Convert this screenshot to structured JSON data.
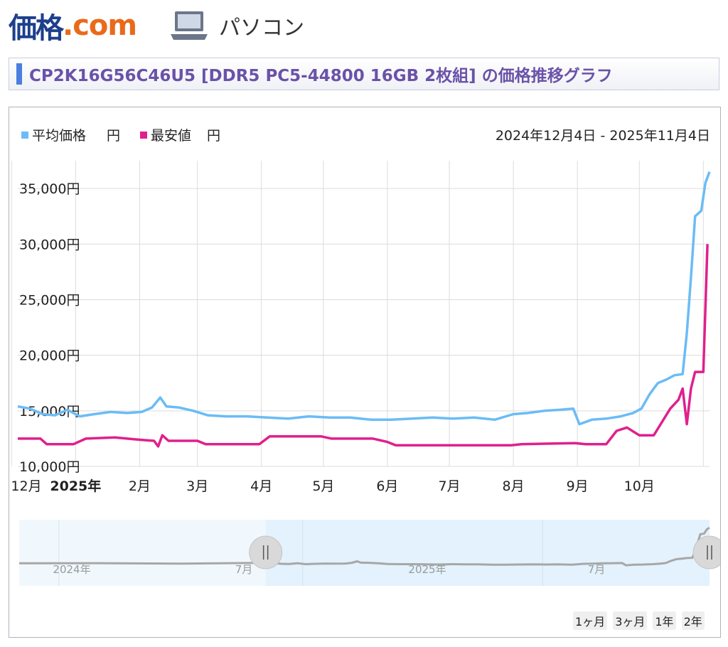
{
  "header": {
    "logo_main": "価格",
    "logo_suffix": ".com",
    "category": "パソコン",
    "title": "CP2K16G56C46U5 [DDR5 PC5-44800 16GB 2枚組] の価格推移グラフ"
  },
  "range_buttons": [
    "1ヶ月",
    "3ヶ月",
    "1年",
    "2年"
  ],
  "chart_data": {
    "type": "line",
    "title": "",
    "date_range": "2024年12月4日 - 2025年11月4日",
    "legend_position": "top-left",
    "grid": true,
    "y_unit": "円",
    "ylim": [
      10000,
      37500
    ],
    "y_ticks": [
      {
        "value": 10000,
        "label": "10,000円"
      },
      {
        "value": 15000,
        "label": "15,000円"
      },
      {
        "value": 20000,
        "label": "20,000円"
      },
      {
        "value": 25000,
        "label": "25,000円"
      },
      {
        "value": 30000,
        "label": "30,000円"
      },
      {
        "value": 35000,
        "label": "35,000円"
      }
    ],
    "xlim": [
      "2024-12-04",
      "2025-11-04"
    ],
    "x_ticks": [
      {
        "date": "2024-12-01",
        "label": "12月",
        "bold": false
      },
      {
        "date": "2025-01-01",
        "label": "2025年",
        "bold": true
      },
      {
        "date": "2025-02-01",
        "label": "2月",
        "bold": false
      },
      {
        "date": "2025-03-01",
        "label": "3月",
        "bold": false
      },
      {
        "date": "2025-04-01",
        "label": "4月",
        "bold": false
      },
      {
        "date": "2025-05-01",
        "label": "5月",
        "bold": false
      },
      {
        "date": "2025-06-01",
        "label": "6月",
        "bold": false
      },
      {
        "date": "2025-07-01",
        "label": "7月",
        "bold": false
      },
      {
        "date": "2025-08-01",
        "label": "8月",
        "bold": false
      },
      {
        "date": "2025-09-01",
        "label": "9月",
        "bold": false
      },
      {
        "date": "2025-10-01",
        "label": "10月",
        "bold": false
      },
      {
        "date": "2025-11-01",
        "label": "",
        "bold": false
      }
    ],
    "series": [
      {
        "name": "平均価格",
        "unit": "円",
        "color": "#6bbcf5",
        "points": [
          [
            "2024-12-04",
            15400
          ],
          [
            "2024-12-10",
            15200
          ],
          [
            "2024-12-16",
            14700
          ],
          [
            "2024-12-22",
            14600
          ],
          [
            "2024-12-28",
            15100
          ],
          [
            "2025-01-03",
            14500
          ],
          [
            "2025-01-10",
            14700
          ],
          [
            "2025-01-18",
            14900
          ],
          [
            "2025-01-26",
            14800
          ],
          [
            "2025-02-02",
            14900
          ],
          [
            "2025-02-07",
            15300
          ],
          [
            "2025-02-11",
            16200
          ],
          [
            "2025-02-14",
            15400
          ],
          [
            "2025-02-20",
            15300
          ],
          [
            "2025-02-27",
            15000
          ],
          [
            "2025-03-06",
            14600
          ],
          [
            "2025-03-15",
            14500
          ],
          [
            "2025-03-25",
            14500
          ],
          [
            "2025-04-04",
            14400
          ],
          [
            "2025-04-14",
            14300
          ],
          [
            "2025-04-24",
            14500
          ],
          [
            "2025-05-04",
            14400
          ],
          [
            "2025-05-14",
            14400
          ],
          [
            "2025-05-24",
            14200
          ],
          [
            "2025-06-03",
            14200
          ],
          [
            "2025-06-13",
            14300
          ],
          [
            "2025-06-23",
            14400
          ],
          [
            "2025-07-03",
            14300
          ],
          [
            "2025-07-13",
            14400
          ],
          [
            "2025-07-23",
            14200
          ],
          [
            "2025-08-01",
            14700
          ],
          [
            "2025-08-08",
            14800
          ],
          [
            "2025-08-16",
            15000
          ],
          [
            "2025-08-24",
            15100
          ],
          [
            "2025-08-30",
            15200
          ],
          [
            "2025-09-02",
            13800
          ],
          [
            "2025-09-08",
            14200
          ],
          [
            "2025-09-15",
            14300
          ],
          [
            "2025-09-22",
            14500
          ],
          [
            "2025-09-28",
            14800
          ],
          [
            "2025-10-02",
            15200
          ],
          [
            "2025-10-06",
            16500
          ],
          [
            "2025-10-10",
            17500
          ],
          [
            "2025-10-14",
            17800
          ],
          [
            "2025-10-18",
            18200
          ],
          [
            "2025-10-22",
            18300
          ],
          [
            "2025-10-24",
            22000
          ],
          [
            "2025-10-26",
            27000
          ],
          [
            "2025-10-28",
            32500
          ],
          [
            "2025-10-31",
            33000
          ],
          [
            "2025-11-02",
            35500
          ],
          [
            "2025-11-04",
            36500
          ]
        ]
      },
      {
        "name": "最安値",
        "unit": "円",
        "color": "#e0208c",
        "points": [
          [
            "2024-12-04",
            12500
          ],
          [
            "2024-12-15",
            12500
          ],
          [
            "2024-12-18",
            12000
          ],
          [
            "2024-12-31",
            12000
          ],
          [
            "2025-01-06",
            12500
          ],
          [
            "2025-01-20",
            12600
          ],
          [
            "2025-02-01",
            12400
          ],
          [
            "2025-02-08",
            12300
          ],
          [
            "2025-02-10",
            11800
          ],
          [
            "2025-02-12",
            12800
          ],
          [
            "2025-02-15",
            12300
          ],
          [
            "2025-03-01",
            12300
          ],
          [
            "2025-03-05",
            12000
          ],
          [
            "2025-03-31",
            12000
          ],
          [
            "2025-04-05",
            12700
          ],
          [
            "2025-04-30",
            12700
          ],
          [
            "2025-05-05",
            12500
          ],
          [
            "2025-05-25",
            12500
          ],
          [
            "2025-06-01",
            12200
          ],
          [
            "2025-06-05",
            11900
          ],
          [
            "2025-07-31",
            11900
          ],
          [
            "2025-08-05",
            12000
          ],
          [
            "2025-08-31",
            12100
          ],
          [
            "2025-09-05",
            12000
          ],
          [
            "2025-09-15",
            12000
          ],
          [
            "2025-09-20",
            13200
          ],
          [
            "2025-09-25",
            13500
          ],
          [
            "2025-10-01",
            12800
          ],
          [
            "2025-10-08",
            12800
          ],
          [
            "2025-10-12",
            14000
          ],
          [
            "2025-10-16",
            15200
          ],
          [
            "2025-10-20",
            16000
          ],
          [
            "2025-10-22",
            17000
          ],
          [
            "2025-10-24",
            13800
          ],
          [
            "2025-10-26",
            17000
          ],
          [
            "2025-10-28",
            18500
          ],
          [
            "2025-11-01",
            18500
          ],
          [
            "2025-11-03",
            30000
          ]
        ]
      }
    ],
    "navigator": {
      "x_labels": [
        "2024年",
        "7月",
        "2025年",
        "7月"
      ],
      "selected_range": [
        "2024-12-04",
        "2025-11-04"
      ]
    }
  }
}
